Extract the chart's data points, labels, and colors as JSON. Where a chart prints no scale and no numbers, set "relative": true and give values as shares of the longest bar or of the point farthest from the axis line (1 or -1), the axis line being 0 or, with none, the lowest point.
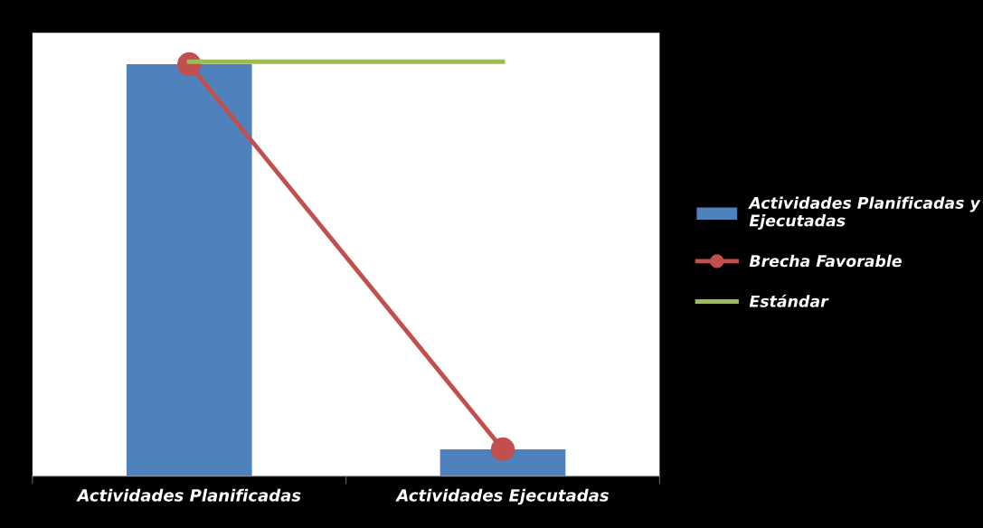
{
  "chart_data": {
    "type": "bar",
    "relative": true,
    "categories": [
      "Actividades Planificadas",
      "Actividades Ejecutadas"
    ],
    "legend": "right",
    "grid": false,
    "series": [
      {
        "name": "Actividades Planificadas y Ejecutadas",
        "color": "#4f81bd",
        "values": [
          0.994,
          0.065
        ]
      },
      {
        "name": "Brecha Favorable",
        "type": "line",
        "color": "#c0504d",
        "marker": "circle",
        "values": [
          0.994,
          0.065
        ]
      },
      {
        "name": "Estándar",
        "type": "line",
        "color": "#9bbb59",
        "marker": "none",
        "values": [
          1.0,
          1.0
        ]
      }
    ]
  }
}
